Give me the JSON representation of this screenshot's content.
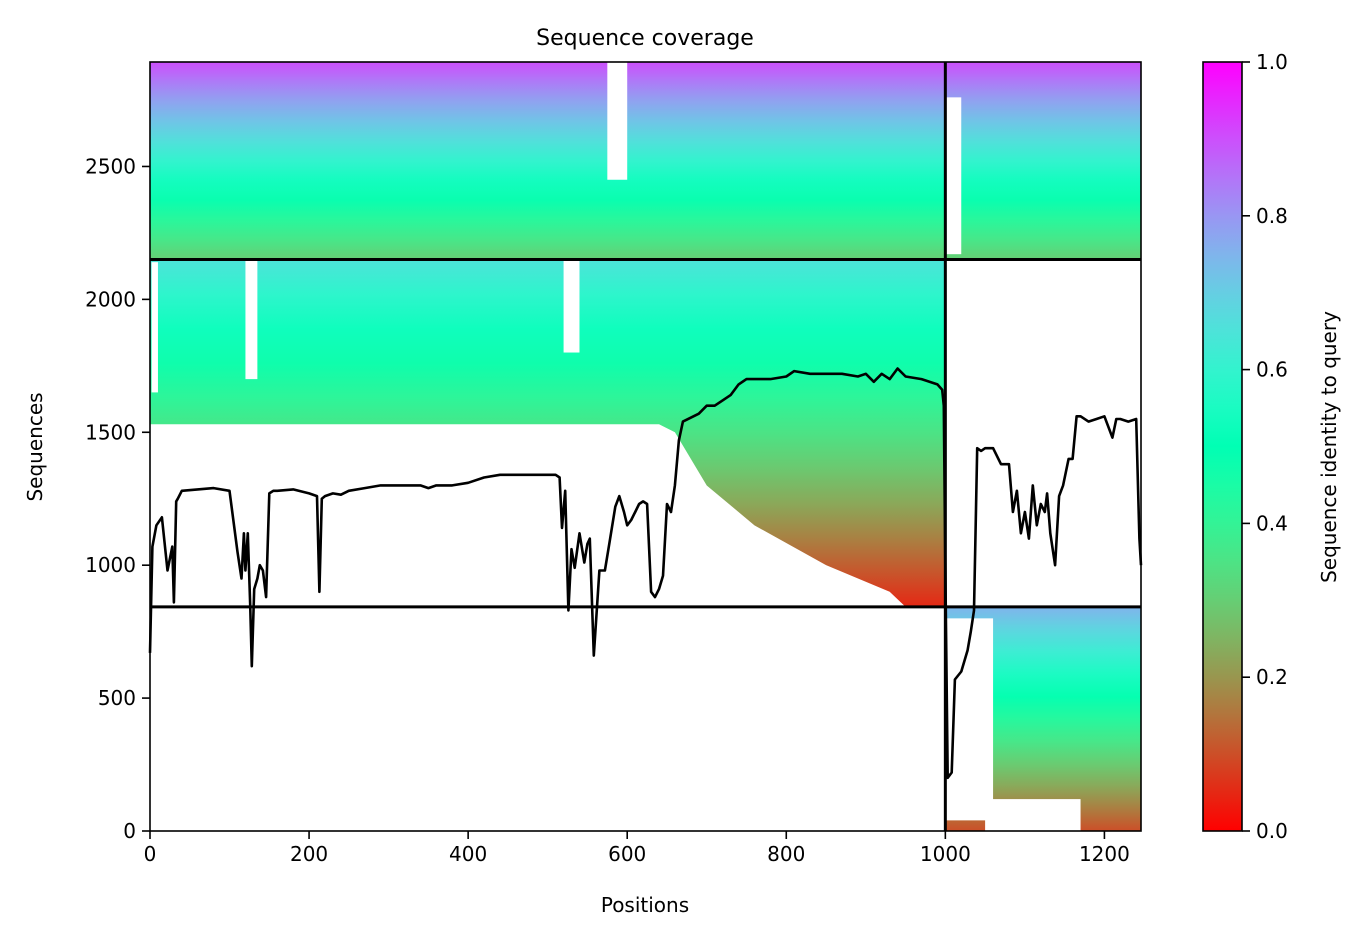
{
  "chart_data": {
    "type": "heatmap",
    "title": "Sequence coverage",
    "xlabel": "Positions",
    "ylabel": "Sequences",
    "xlim": [
      0,
      1246
    ],
    "ylim": [
      0,
      2893
    ],
    "x_ticks": [
      0,
      200,
      400,
      600,
      800,
      1000,
      1200
    ],
    "y_ticks": [
      0,
      500,
      1000,
      1500,
      2000,
      2500
    ],
    "chain_boundary_x": 1000,
    "block_boundaries_y": [
      843,
      2150
    ],
    "blocks": [
      {
        "name": "",
        "x": [
          0,
          1246
        ],
        "y": [
          2150,
          2893
        ],
        "identity_top": 0.9,
        "identity_bottom": 0.3
      },
      {
        "name": "",
        "x": [
          0,
          1000
        ],
        "y": [
          843,
          2150
        ],
        "identity_top": 0.65,
        "identity_bottom": 0.05
      },
      {
        "name": "",
        "x": [
          1000,
          1246
        ],
        "y": [
          0,
          843
        ],
        "identity_top": 0.75,
        "identity_bottom": 0.1
      }
    ],
    "coverage_line": {
      "x": [
        0,
        3,
        8,
        15,
        22,
        28,
        30,
        33,
        35,
        40,
        60,
        80,
        100,
        110,
        115,
        118,
        120,
        123,
        126,
        128,
        131,
        135,
        138,
        142,
        146,
        150,
        155,
        160,
        180,
        200,
        210,
        213,
        216,
        220,
        230,
        240,
        250,
        270,
        290,
        300,
        320,
        340,
        350,
        360,
        380,
        400,
        420,
        440,
        480,
        500,
        510,
        515,
        518,
        522,
        526,
        530,
        534,
        540,
        546,
        550,
        553,
        558,
        565,
        572,
        578,
        585,
        590,
        596,
        600,
        605,
        610,
        615,
        620,
        625,
        630,
        635,
        640,
        645,
        650,
        655,
        660,
        665,
        670,
        690,
        700,
        710,
        720,
        730,
        740,
        750,
        780,
        800,
        810,
        830,
        870,
        890,
        900,
        910,
        920,
        930,
        940,
        950,
        970,
        990,
        996,
        998,
        1000,
        1003,
        1008,
        1012,
        1020,
        1028,
        1032,
        1036,
        1040,
        1045,
        1050,
        1060,
        1070,
        1080,
        1085,
        1090,
        1095,
        1100,
        1105,
        1110,
        1115,
        1120,
        1125,
        1128,
        1132,
        1138,
        1143,
        1148,
        1155,
        1160,
        1165,
        1170,
        1180,
        1190,
        1200,
        1210,
        1215,
        1220,
        1230,
        1240,
        1244,
        1246
      ],
      "y": [
        670,
        1070,
        1150,
        1180,
        980,
        1070,
        860,
        1240,
        1250,
        1280,
        1285,
        1290,
        1280,
        1050,
        950,
        1120,
        980,
        1120,
        850,
        620,
        910,
        950,
        1000,
        980,
        880,
        1270,
        1280,
        1280,
        1285,
        1270,
        1260,
        900,
        1250,
        1260,
        1270,
        1265,
        1280,
        1290,
        1300,
        1300,
        1300,
        1300,
        1290,
        1300,
        1300,
        1310,
        1330,
        1340,
        1340,
        1340,
        1340,
        1330,
        1140,
        1280,
        830,
        1060,
        990,
        1120,
        1010,
        1080,
        1100,
        660,
        980,
        980,
        1090,
        1220,
        1260,
        1200,
        1150,
        1170,
        1200,
        1230,
        1240,
        1230,
        900,
        880,
        910,
        960,
        1230,
        1200,
        1300,
        1470,
        1540,
        1570,
        1600,
        1600,
        1620,
        1640,
        1680,
        1700,
        1700,
        1710,
        1730,
        1720,
        1720,
        1710,
        1720,
        1690,
        1720,
        1700,
        1740,
        1710,
        1700,
        1680,
        1660,
        1600,
        1000,
        200,
        220,
        570,
        600,
        680,
        750,
        830,
        1440,
        1430,
        1440,
        1440,
        1380,
        1380,
        1200,
        1280,
        1120,
        1200,
        1100,
        1300,
        1150,
        1230,
        1200,
        1270,
        1120,
        1000,
        1260,
        1300,
        1400,
        1400,
        1560,
        1560,
        1540,
        1550,
        1560,
        1480,
        1550,
        1550,
        1540,
        1550,
        1100,
        1000
      ]
    },
    "colorbar": {
      "label": "Sequence identity to query",
      "min": 0.0,
      "max": 1.0,
      "ticks": [
        0.0,
        0.2,
        0.4,
        0.6,
        0.8,
        1.0
      ],
      "tick_labels": [
        "0.0",
        "0.2",
        "0.4",
        "0.6",
        "0.8",
        "1.0"
      ],
      "colormap": "rainbow_r"
    },
    "colors": {
      "line": "#000000",
      "axis": "#000000",
      "background": "#ffffff"
    }
  }
}
